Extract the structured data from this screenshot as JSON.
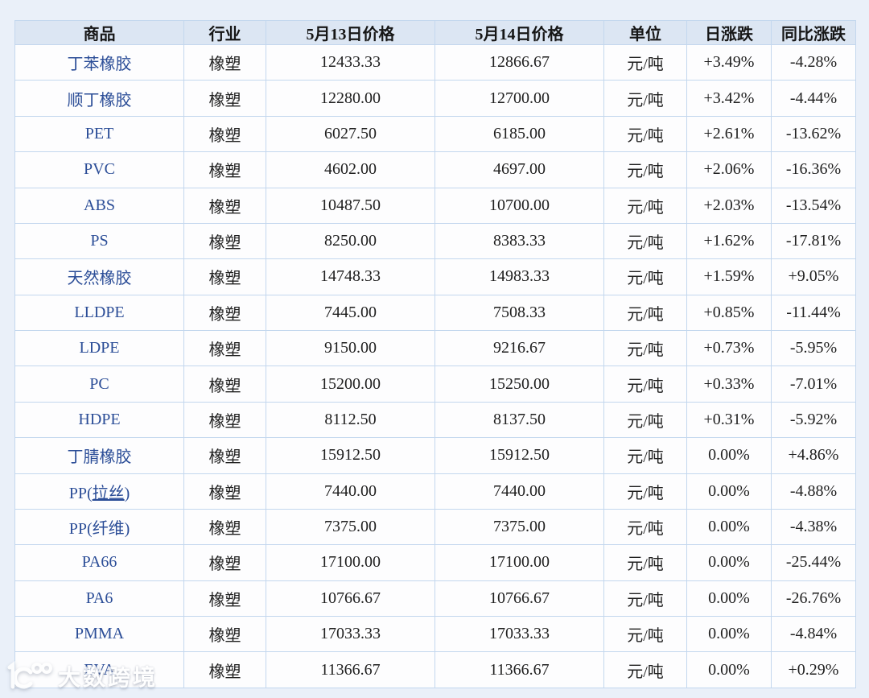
{
  "page": {
    "background": "#eaf0f9"
  },
  "colors": {
    "header_bg": "#dce6f3",
    "cell_bg": "#fdfdfe",
    "border": "#c3d7ee",
    "commodity_blue": "#2b4d97",
    "positive_red": "#cf2a27",
    "negative_green": "#2f9e3e",
    "text_black": "#1f1f1f"
  },
  "table": {
    "columns": [
      "商品",
      "行业",
      "5月13日价格",
      "5月14日价格",
      "单位",
      "日涨跌",
      "同比涨跌"
    ],
    "rows": [
      {
        "name": "丁苯橡胶",
        "industry": "橡塑",
        "price_may13": "12433.33",
        "price_may14": "12866.67",
        "unit": "元/吨",
        "daily_change": "+3.49%",
        "yoy_change": "-4.28%"
      },
      {
        "name": "顺丁橡胶",
        "industry": "橡塑",
        "price_may13": "12280.00",
        "price_may14": "12700.00",
        "unit": "元/吨",
        "daily_change": "+3.42%",
        "yoy_change": "-4.44%"
      },
      {
        "name": "PET",
        "industry": "橡塑",
        "price_may13": "6027.50",
        "price_may14": "6185.00",
        "unit": "元/吨",
        "daily_change": "+2.61%",
        "yoy_change": "-13.62%"
      },
      {
        "name": "PVC",
        "industry": "橡塑",
        "price_may13": "4602.00",
        "price_may14": "4697.00",
        "unit": "元/吨",
        "daily_change": "+2.06%",
        "yoy_change": "-16.36%"
      },
      {
        "name": "ABS",
        "industry": "橡塑",
        "price_may13": "10487.50",
        "price_may14": "10700.00",
        "unit": "元/吨",
        "daily_change": "+2.03%",
        "yoy_change": "-13.54%"
      },
      {
        "name": "PS",
        "industry": "橡塑",
        "price_may13": "8250.00",
        "price_may14": "8383.33",
        "unit": "元/吨",
        "daily_change": "+1.62%",
        "yoy_change": "-17.81%"
      },
      {
        "name": "天然橡胶",
        "industry": "橡塑",
        "price_may13": "14748.33",
        "price_may14": "14983.33",
        "unit": "元/吨",
        "daily_change": "+1.59%",
        "yoy_change": "+9.05%"
      },
      {
        "name": "LLDPE",
        "industry": "橡塑",
        "price_may13": "7445.00",
        "price_may14": "7508.33",
        "unit": "元/吨",
        "daily_change": "+0.85%",
        "yoy_change": "-11.44%"
      },
      {
        "name": "LDPE",
        "industry": "橡塑",
        "price_may13": "9150.00",
        "price_may14": "9216.67",
        "unit": "元/吨",
        "daily_change": "+0.73%",
        "yoy_change": "-5.95%"
      },
      {
        "name": "PC",
        "industry": "橡塑",
        "price_may13": "15200.00",
        "price_may14": "15250.00",
        "unit": "元/吨",
        "daily_change": "+0.33%",
        "yoy_change": "-7.01%"
      },
      {
        "name": "HDPE",
        "industry": "橡塑",
        "price_may13": "8112.50",
        "price_may14": "8137.50",
        "unit": "元/吨",
        "daily_change": "+0.31%",
        "yoy_change": "-5.92%"
      },
      {
        "name": "丁腈橡胶",
        "industry": "橡塑",
        "price_may13": "15912.50",
        "price_may14": "15912.50",
        "unit": "元/吨",
        "daily_change": "0.00%",
        "yoy_change": "+4.86%"
      },
      {
        "name": "PP(拉丝)",
        "name_pre": "PP(",
        "name_underline": "拉丝",
        "name_post": ")",
        "industry": "橡塑",
        "price_may13": "7440.00",
        "price_may14": "7440.00",
        "unit": "元/吨",
        "daily_change": "0.00%",
        "yoy_change": "-4.88%"
      },
      {
        "name": "PP(纤维)",
        "industry": "橡塑",
        "price_may13": "7375.00",
        "price_may14": "7375.00",
        "unit": "元/吨",
        "daily_change": "0.00%",
        "yoy_change": "-4.38%"
      },
      {
        "name": "PA66",
        "industry": "橡塑",
        "price_may13": "17100.00",
        "price_may14": "17100.00",
        "unit": "元/吨",
        "daily_change": "0.00%",
        "yoy_change": "-25.44%"
      },
      {
        "name": "PA6",
        "industry": "橡塑",
        "price_may13": "10766.67",
        "price_may14": "10766.67",
        "unit": "元/吨",
        "daily_change": "0.00%",
        "yoy_change": "-26.76%"
      },
      {
        "name": "PMMA",
        "industry": "橡塑",
        "price_may13": "17033.33",
        "price_may14": "17033.33",
        "unit": "元/吨",
        "daily_change": "0.00%",
        "yoy_change": "-4.84%"
      },
      {
        "name": "EVA",
        "industry": "橡塑",
        "price_may13": "11366.67",
        "price_may14": "11366.67",
        "unit": "元/吨",
        "daily_change": "0.00%",
        "yoy_change": "+0.29%"
      }
    ]
  },
  "watermark": {
    "logo": "100",
    "text": "大数跨境"
  }
}
